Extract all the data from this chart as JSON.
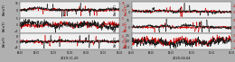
{
  "left_date": "2019-11-20",
  "right_date": "2020-04-04",
  "left_xticks": [
    "06:00",
    "08:00",
    "10:00",
    "12:00",
    "14:00",
    "16:00",
    "18:00"
  ],
  "right_xticks": [
    "04:00",
    "06:00",
    "08:00",
    "10:00",
    "12:00",
    "14:00"
  ],
  "left_ylabels": [
    "Bn(nT)",
    "Bt(nT)",
    "Br(nT)"
  ],
  "right_ylabels": [
    "Bn(nT)",
    "Bt(nT)",
    "Br(nT)"
  ],
  "color_black": "#1a1a1a",
  "color_red": "#cc0000",
  "panel_bg": "#f0f0f0",
  "fig_bg": "#b0b0b0",
  "linewidth": 0.35,
  "seed": 7,
  "n_points": 500
}
